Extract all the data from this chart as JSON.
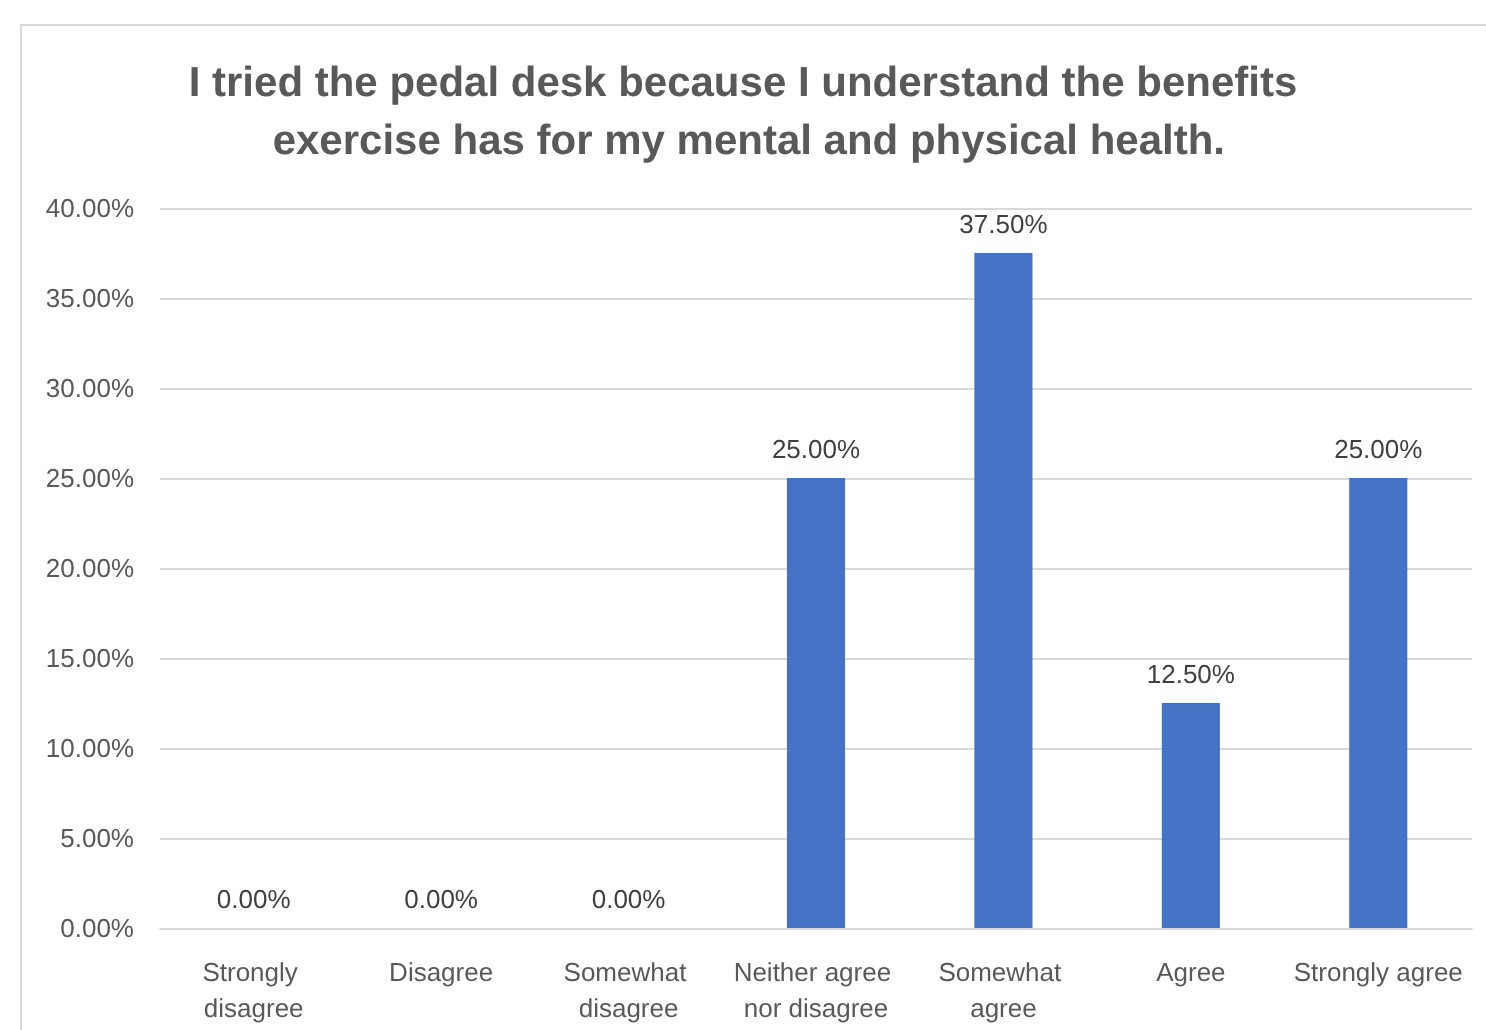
{
  "chart_data": {
    "type": "bar",
    "title": "I tried the pedal desk because I understand the benefits exercise has for my mental and physical health.",
    "categories": [
      "Strongly disagree",
      "Disagree",
      "Somewhat disagree",
      "Neither agree nor disagree",
      "Somewhat agree",
      "Agree",
      "Strongly agree"
    ],
    "values": [
      0,
      0,
      0,
      25,
      37.5,
      12.5,
      25
    ],
    "color": "#4472c4",
    "value_labels": [
      "0.00%",
      "0.00%",
      "0.00%",
      "25.00%",
      "37.50%",
      "12.50%",
      "25.00%"
    ],
    "ylim": [
      0,
      40
    ],
    "yticks": [
      {
        "value": 0,
        "label": "0.00%"
      },
      {
        "value": 5,
        "label": "5.00%"
      },
      {
        "value": 10,
        "label": "10.00%"
      },
      {
        "value": 15,
        "label": "15.00%"
      },
      {
        "value": 20,
        "label": "20.00%"
      },
      {
        "value": 25,
        "label": "25.00%"
      },
      {
        "value": 30,
        "label": "30.00%"
      },
      {
        "value": 35,
        "label": "35.00%"
      },
      {
        "value": 40,
        "label": "40.00%"
      }
    ],
    "grid": "y"
  }
}
